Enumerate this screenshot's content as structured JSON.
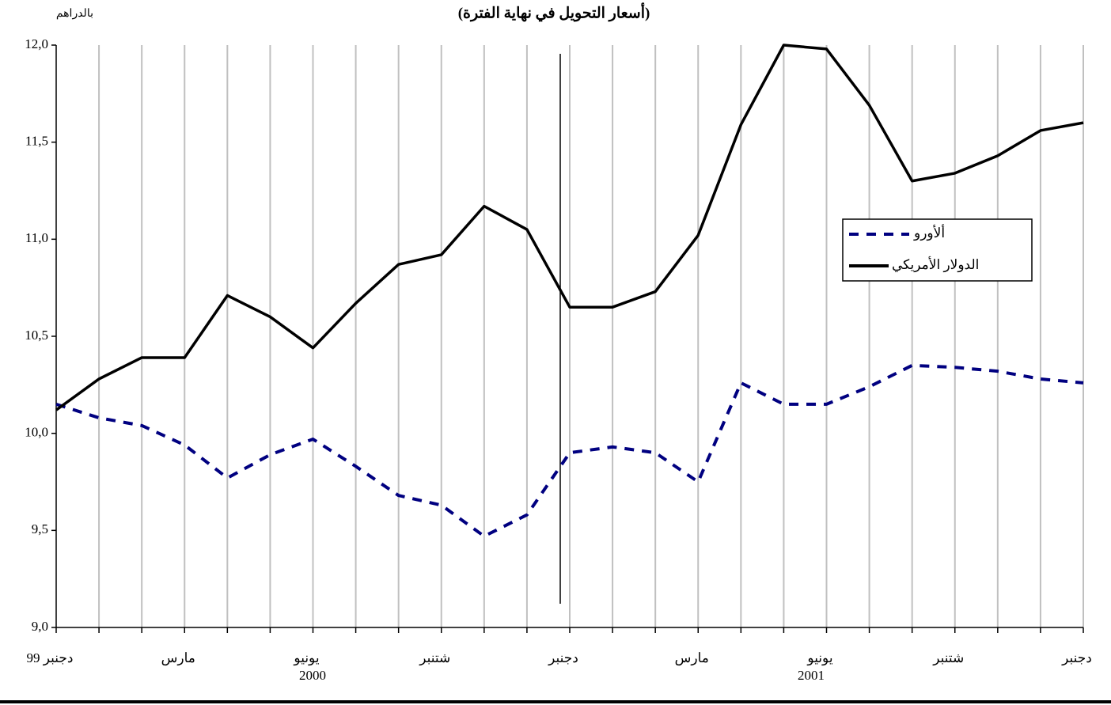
{
  "chart_data": {
    "type": "line",
    "title": "(أسعار التحويل في نهاية الفترة)",
    "y_axis_label": "بالدراهم",
    "annotations": [
      "2000",
      "2001"
    ],
    "categories": [
      "دجنبر 99",
      null,
      null,
      "مارس",
      null,
      null,
      "يونيو",
      null,
      null,
      "شتنبر",
      null,
      null,
      "دجنبر",
      null,
      null,
      "مارس",
      null,
      null,
      "يونيو",
      null,
      null,
      "شتنبر",
      null,
      null,
      "دجنبر"
    ],
    "series": [
      {
        "name": "ألأورو",
        "color": "#000080",
        "linestyle": "dashed",
        "values": [
          10.15,
          10.08,
          10.04,
          9.94,
          9.77,
          9.89,
          9.97,
          9.83,
          9.68,
          9.63,
          9.47,
          9.58,
          9.9,
          9.93,
          9.9,
          9.75,
          10.26,
          10.15,
          10.15,
          10.24,
          10.35,
          10.34,
          10.32,
          10.28,
          10.26
        ]
      },
      {
        "name": "الدولار الأمريكي",
        "color": "#000000",
        "linestyle": "solid",
        "values": [
          10.12,
          10.28,
          10.39,
          10.39,
          10.71,
          10.6,
          10.44,
          10.67,
          10.87,
          10.92,
          11.17,
          11.05,
          10.65,
          10.65,
          10.73,
          11.02,
          11.59,
          12.0,
          11.98,
          11.69,
          11.3,
          11.34,
          11.43,
          11.56,
          11.6
        ]
      }
    ],
    "ylim": [
      9.0,
      12.0
    ],
    "yticks": [
      {
        "value": 9.0,
        "label": "9,0"
      },
      {
        "value": 9.5,
        "label": "9,5"
      },
      {
        "value": 10.0,
        "label": "10,0"
      },
      {
        "value": 10.5,
        "label": "10,5"
      },
      {
        "value": 11.0,
        "label": "11,0"
      },
      {
        "value": 11.5,
        "label": "11,5"
      },
      {
        "value": 12.0,
        "label": "12,0"
      }
    ],
    "grid": "x",
    "legend": "right"
  }
}
